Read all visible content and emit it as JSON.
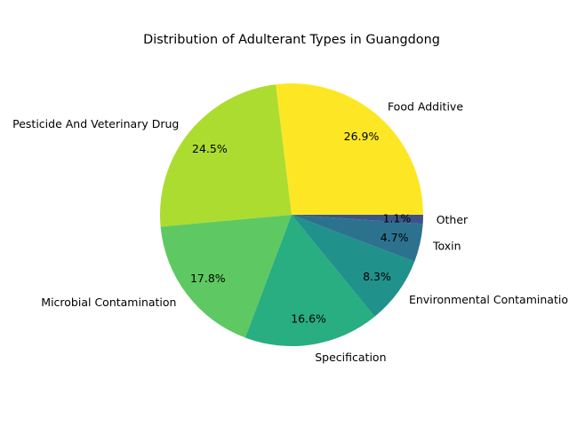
{
  "chart_data": {
    "type": "pie",
    "title": "Distribution of Adulterant Types in Guangdong",
    "start_angle_deg": 0,
    "direction": "counterclockwise",
    "slices": [
      {
        "label": "Food Additive",
        "value": 26.9,
        "pct_label": "26.9%",
        "color": "#fde725"
      },
      {
        "label": "Pesticide And Veterinary Drug",
        "value": 24.5,
        "pct_label": "24.5%",
        "color": "#addc30"
      },
      {
        "label": "Microbial Contamination",
        "value": 17.8,
        "pct_label": "17.8%",
        "color": "#5ec962"
      },
      {
        "label": "Specification",
        "value": 16.6,
        "pct_label": "16.6%",
        "color": "#28ae80"
      },
      {
        "label": "Environmental Contamination",
        "value": 8.3,
        "pct_label": "8.3%",
        "color": "#21918c"
      },
      {
        "label": "Toxin",
        "value": 4.7,
        "pct_label": "4.7%",
        "color": "#2c728e"
      },
      {
        "label": "Other",
        "value": 1.1,
        "pct_label": "1.1%",
        "color": "#3b528b"
      }
    ]
  }
}
